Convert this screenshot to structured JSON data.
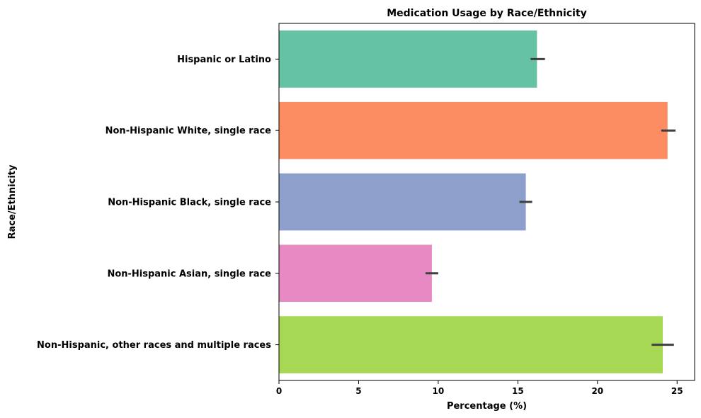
{
  "chart_data": {
    "type": "bar",
    "orientation": "horizontal",
    "title": "Medication Usage by Race/Ethnicity",
    "xlabel": "Percentage (%)",
    "ylabel": "Race/Ethnicity",
    "categories": [
      "Hispanic or Latino",
      "Non-Hispanic White, single race",
      "Non-Hispanic Black, single race",
      "Non-Hispanic Asian, single race",
      "Non-Hispanic, other races and multiple races"
    ],
    "values": [
      16.2,
      24.4,
      15.5,
      9.6,
      24.1
    ],
    "error_bars": [
      [
        15.8,
        16.7
      ],
      [
        24.0,
        24.9
      ],
      [
        15.1,
        15.9
      ],
      [
        9.2,
        10.0
      ],
      [
        23.4,
        24.8
      ]
    ],
    "colors": [
      "#66c2a5",
      "#fc8d62",
      "#8da0cb",
      "#e78ac3",
      "#a6d854"
    ],
    "xlim": [
      0,
      26.1
    ],
    "xticks": [
      0,
      5,
      10,
      15,
      20,
      25
    ],
    "grid": false,
    "legend": false
  }
}
